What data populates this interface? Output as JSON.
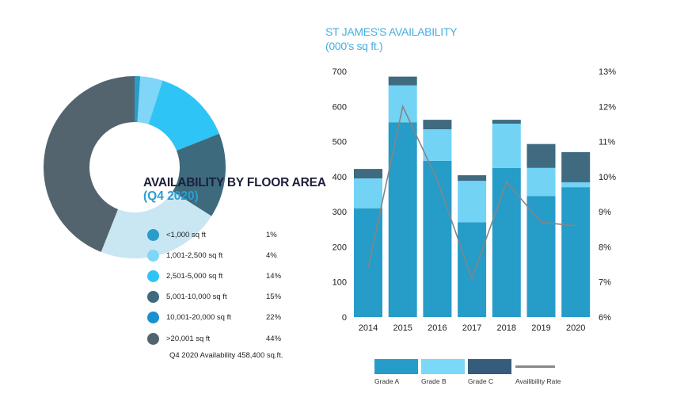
{
  "donut": {
    "title": "AVAILABILITY BY FLOOR AREA",
    "subtitle": "(Q4 2020)",
    "note": "Q4 2020 Availability 458,400 sq.ft.",
    "items": [
      {
        "label": "<1,000 sq ft",
        "value": "1%",
        "color": "#2a9cc8"
      },
      {
        "label": "1,001-2,500 sq ft",
        "value": "4%",
        "color": "#7fd6f7"
      },
      {
        "label": "2,501-5,000 sq ft",
        "value": "14%",
        "color": "#2fc4f6"
      },
      {
        "label": "5,001-10,000 sq ft",
        "value": "15%",
        "color": "#3d6a7d"
      },
      {
        "label": "10,001-20,000 sq ft",
        "value": "22%",
        "color": "#1a90cf"
      },
      {
        "label": ">20,001 sq ft",
        "value": "44%",
        "color": "#54646e"
      }
    ]
  },
  "bar_chart": {
    "title_line1": "ST JAMES'S AVAILABILITY",
    "title_line2": "(000's sq ft.)",
    "legend": [
      {
        "label": "Grade A",
        "color": "#269cc8"
      },
      {
        "label": "Grade B",
        "color": "#7ad8f8"
      },
      {
        "label": "Grade C",
        "color": "#355c7c"
      },
      {
        "label": "Availibility Rate",
        "color": "#888888"
      }
    ]
  },
  "chart_data": [
    {
      "type": "pie",
      "title": "AVAILABILITY BY FLOOR AREA (Q4 2020)",
      "categories": [
        "<1,000 sq ft",
        "1,001-2,500 sq ft",
        "2,501-5,000 sq ft",
        "5,001-10,000 sq ft",
        "10,001-20,000 sq ft",
        ">20,001 sq ft"
      ],
      "values": [
        1,
        4,
        14,
        15,
        22,
        44
      ],
      "annotation": "Q4 2020 Availability 458,400 sq.ft."
    },
    {
      "type": "bar",
      "stacked": true,
      "title": "ST JAMES'S AVAILABILITY (000's sq ft.)",
      "categories": [
        "2014",
        "2015",
        "2016",
        "2017",
        "2018",
        "2019",
        "2020"
      ],
      "series": [
        {
          "name": "Grade A",
          "values": [
            310,
            555,
            445,
            270,
            425,
            345,
            370
          ]
        },
        {
          "name": "Grade B",
          "values": [
            85,
            105,
            90,
            118,
            126,
            80,
            14
          ]
        },
        {
          "name": "Grade C",
          "values": [
            27,
            25,
            27,
            16,
            11,
            68,
            86
          ]
        },
        {
          "name": "Availibility Rate",
          "type": "line",
          "axis": "right",
          "values": [
            7.4,
            12.0,
            9.9,
            7.1,
            9.85,
            8.7,
            8.6
          ]
        }
      ],
      "ylim": [
        0,
        700
      ],
      "yticks": [
        0,
        100,
        200,
        300,
        400,
        500,
        600,
        700
      ],
      "y2lim": [
        6,
        13
      ],
      "y2ticks": [
        "6%",
        "7%",
        "8%",
        "9%",
        "10%",
        "11%",
        "12%",
        "13%"
      ],
      "legend_position": "bottom",
      "grid": false
    }
  ]
}
